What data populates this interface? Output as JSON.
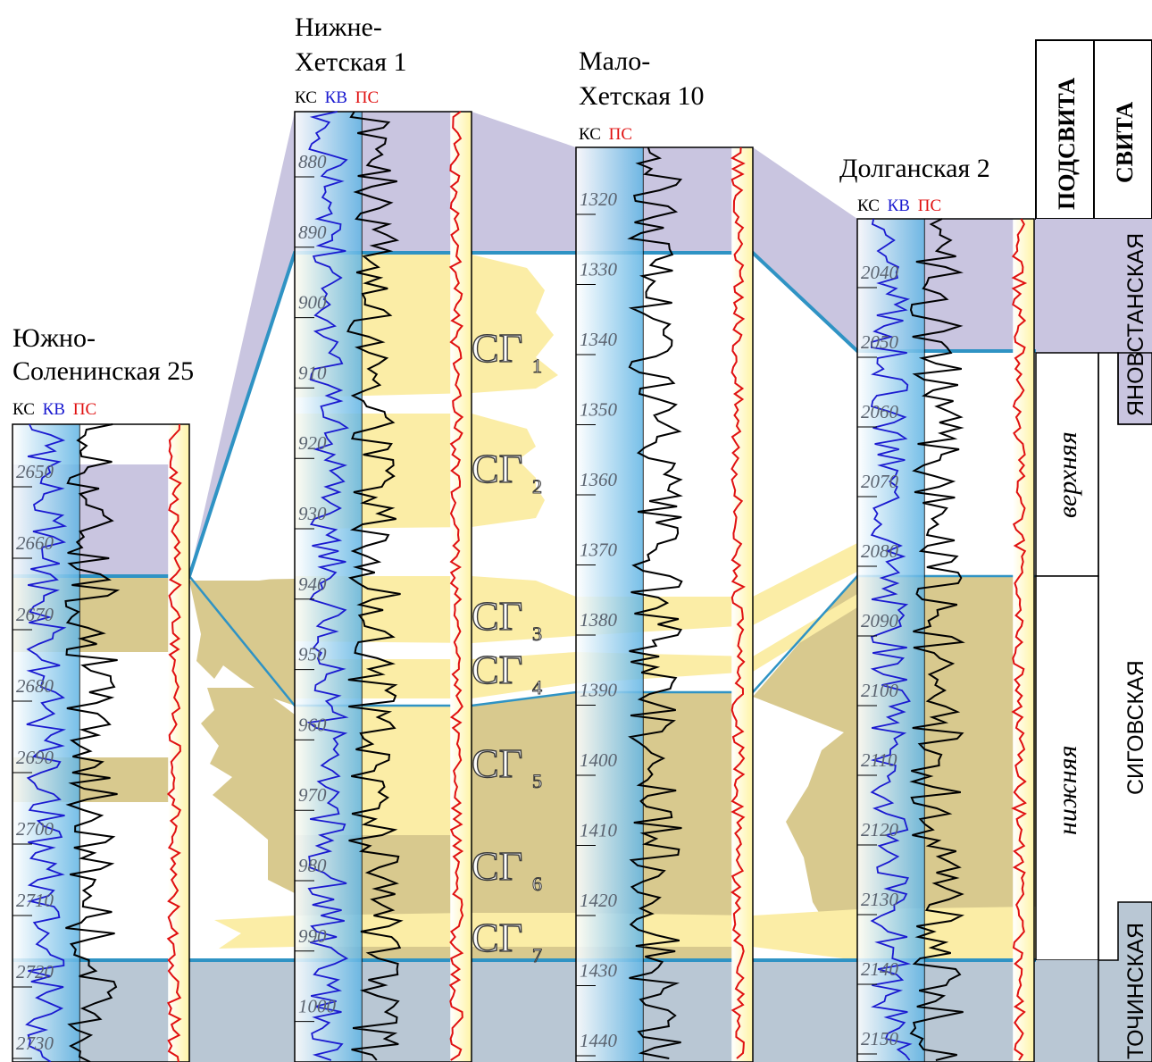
{
  "wells": [
    {
      "id": "ys25",
      "title_lines": [
        "Южно-",
        "Соленинская 25"
      ],
      "logs": [
        "КС",
        "КВ",
        "ПС"
      ],
      "depths": [
        "2650",
        "2660",
        "2670",
        "2680",
        "2690",
        "2700",
        "2710",
        "2720",
        "2730"
      ]
    },
    {
      "id": "nh1",
      "title_lines": [
        "Нижне-",
        "Хетская 1"
      ],
      "logs": [
        "КС",
        "КВ",
        "ПС"
      ],
      "depths": [
        "880",
        "890",
        "900",
        "910",
        "920",
        "930",
        "940",
        "950",
        "960",
        "970",
        "980",
        "990",
        "1000"
      ]
    },
    {
      "id": "mh10",
      "title_lines": [
        "Мало-",
        "Хетская 10"
      ],
      "logs": [
        "КС",
        "ПС"
      ],
      "depths": [
        "1320",
        "1330",
        "1340",
        "1350",
        "1360",
        "1370",
        "1380",
        "1390",
        "1400",
        "1410",
        "1420",
        "1430",
        "1440"
      ]
    },
    {
      "id": "dg2",
      "title_lines": [
        "Долганская 2"
      ],
      "logs": [
        "КС",
        "КВ",
        "ПС"
      ],
      "depths": [
        "2040",
        "2050",
        "2060",
        "2070",
        "2080",
        "2090",
        "2100",
        "2110",
        "2120",
        "2130",
        "2140",
        "2150"
      ]
    }
  ],
  "sg_labels": [
    {
      "main": "СГ",
      "sub": "1"
    },
    {
      "main": "СГ",
      "sub": "2"
    },
    {
      "main": "СГ",
      "sub": "3"
    },
    {
      "main": "СГ",
      "sub": "4"
    },
    {
      "main": "СГ",
      "sub": "5"
    },
    {
      "main": "СГ",
      "sub": "6"
    },
    {
      "main": "СГ",
      "sub": "7"
    }
  ],
  "stratigraphy": {
    "header_podsvita": "ПОДСВИТА",
    "header_svita": "СВИТА",
    "svitas": [
      "ЯНОВСТАНСКАЯ",
      "СИГОВСКАЯ",
      "ТОЧИНСКАЯ"
    ],
    "podsvitas": [
      "верхняя",
      "нижняя"
    ]
  },
  "colors": {
    "lilac": "#c9c5e0",
    "sand": "#d8c98e",
    "yellow": "#fbeda6",
    "grey_blue": "#b9c7d4",
    "boundary": "#2f93c4",
    "ks": "#000000",
    "kv": "#1a1ad0",
    "ps": "#e01010"
  }
}
